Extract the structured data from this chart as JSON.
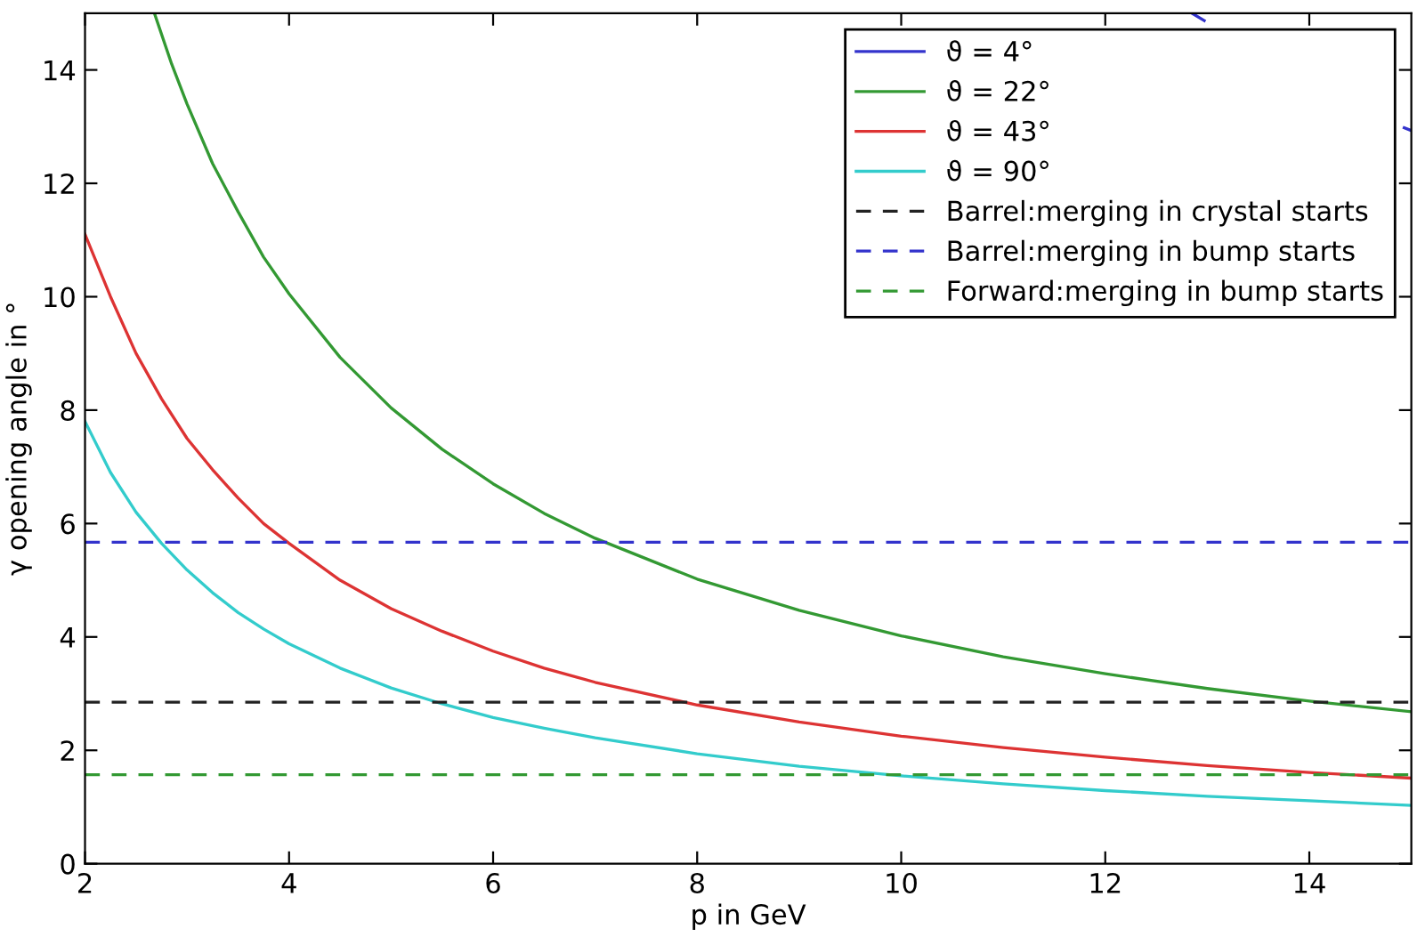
{
  "chart_data": {
    "type": "line",
    "xlabel": "p in GeV",
    "ylabel": "γ opening angle in °",
    "xlim": [
      2,
      15
    ],
    "ylim": [
      0,
      15
    ],
    "xticks": [
      2,
      4,
      6,
      8,
      10,
      12,
      14
    ],
    "yticks": [
      0,
      2,
      4,
      6,
      8,
      10,
      12,
      14
    ],
    "grid": false,
    "legend": "top right",
    "line_style": "solid",
    "marker": "none",
    "series": [
      {
        "name": "ϑ = 4°",
        "color": "#3333cc",
        "x": [
          12.85,
          12.97,
          14,
          14.93,
          15
        ],
        "values": [
          15,
          14.87,
          null,
          12.98,
          12.93
        ]
      },
      {
        "name": "ϑ = 22°",
        "color": "#339933",
        "x": [
          2.68,
          2.85,
          3,
          3.25,
          3.5,
          3.75,
          4,
          4.5,
          5,
          5.5,
          6,
          6.5,
          7,
          8,
          9,
          10,
          11,
          12,
          13,
          14,
          15
        ],
        "values": [
          15,
          14.1,
          13.4,
          12.35,
          11.5,
          10.7,
          10.05,
          8.93,
          8.04,
          7.31,
          6.7,
          6.18,
          5.74,
          5.02,
          4.47,
          4.02,
          3.65,
          3.35,
          3.09,
          2.87,
          2.68
        ]
      },
      {
        "name": "ϑ = 43°",
        "color": "#dd3333",
        "x": [
          2,
          2.25,
          2.5,
          2.75,
          3,
          3.25,
          3.5,
          3.75,
          4,
          4.5,
          5,
          5.5,
          6,
          6.5,
          7,
          8,
          9,
          10,
          11,
          12,
          13,
          14,
          15
        ],
        "values": [
          11.1,
          10.0,
          9.0,
          8.2,
          7.5,
          6.95,
          6.45,
          6.0,
          5.65,
          5.0,
          4.5,
          4.1,
          3.75,
          3.45,
          3.2,
          2.8,
          2.5,
          2.25,
          2.05,
          1.88,
          1.73,
          1.61,
          1.51
        ]
      },
      {
        "name": "ϑ = 90°",
        "color": "#33cccc",
        "x": [
          2,
          2.25,
          2.5,
          2.75,
          3,
          3.25,
          3.5,
          3.75,
          4,
          4.5,
          5,
          5.5,
          6,
          6.5,
          7,
          8,
          9,
          10,
          11,
          12,
          13,
          14,
          15
        ],
        "values": [
          7.8,
          6.9,
          6.2,
          5.65,
          5.18,
          4.78,
          4.43,
          4.14,
          3.88,
          3.45,
          3.1,
          2.82,
          2.58,
          2.39,
          2.22,
          1.94,
          1.72,
          1.55,
          1.41,
          1.29,
          1.19,
          1.11,
          1.03
        ]
      }
    ],
    "ref_lines": [
      {
        "axis": "y",
        "value": 2.85,
        "label": "Barrel:merging in crystal starts",
        "color": "#222222",
        "line_style": "dashed"
      },
      {
        "axis": "y",
        "value": 5.67,
        "label": "Barrel:merging in bump starts",
        "color": "#3333cc",
        "line_style": "dashed"
      },
      {
        "axis": "y",
        "value": 1.57,
        "label": "Forward:merging in bump starts",
        "color": "#339933",
        "line_style": "dashed"
      }
    ]
  }
}
